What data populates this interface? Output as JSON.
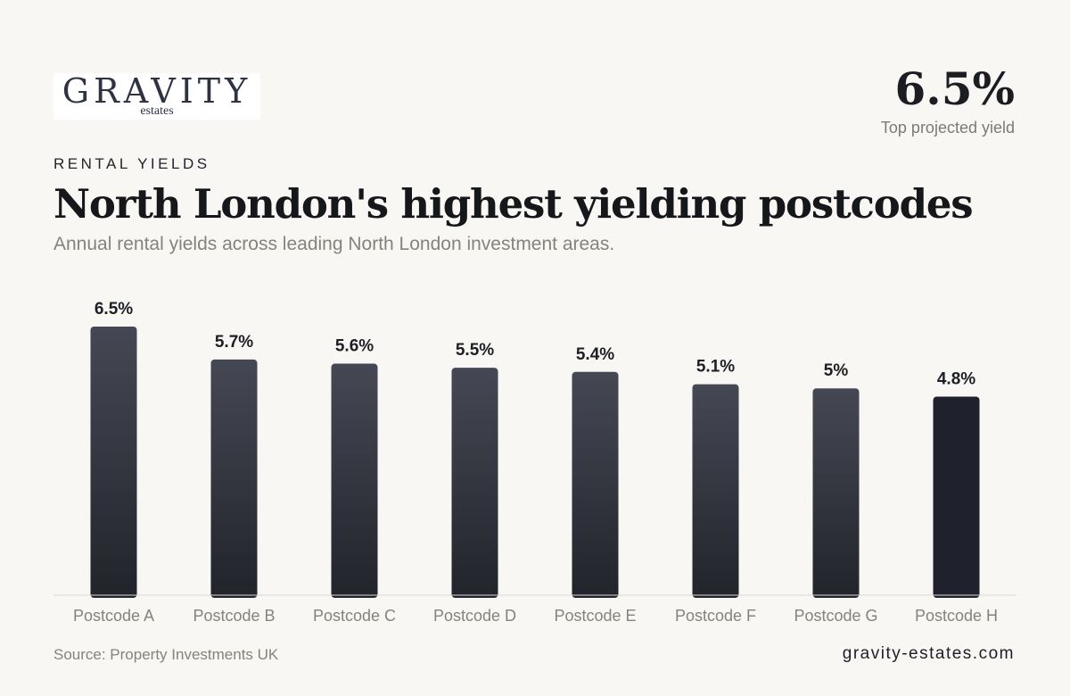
{
  "brand": {
    "logo_word": "GRAVITY",
    "logo_sub": "estates"
  },
  "headline_stat": {
    "value": "6.5%",
    "label": "Top projected yield"
  },
  "header": {
    "kicker": "RENTAL YIELDS",
    "title": "North London's highest yielding postcodes",
    "subtitle": "Annual rental yields across leading North London investment areas."
  },
  "footer": {
    "source": "Source: Property Investments UK",
    "site": "gravity-estates.com"
  },
  "colors": {
    "background": "#f8f7f4",
    "bar_top": "#454854",
    "bar_bottom": "#22242b",
    "bar_highlight": "#1f222d",
    "axis": "#dcd9d3",
    "tick_label": "#86827c",
    "value_label": "#1e1f24"
  },
  "chart_data": {
    "type": "bar",
    "categories": [
      "Postcode A",
      "Postcode B",
      "Postcode C",
      "Postcode D",
      "Postcode E",
      "Postcode F",
      "Postcode G",
      "Postcode H"
    ],
    "values": [
      6.5,
      5.7,
      5.6,
      5.5,
      5.4,
      5.1,
      5,
      4.8
    ],
    "value_labels": [
      "6.5%",
      "5.7%",
      "5.6%",
      "5.5%",
      "5.4%",
      "5.1%",
      "5%",
      "4.8%"
    ],
    "highlight_index": 7,
    "ylim": [
      0,
      6.5
    ],
    "grid": false,
    "legend": "none"
  }
}
